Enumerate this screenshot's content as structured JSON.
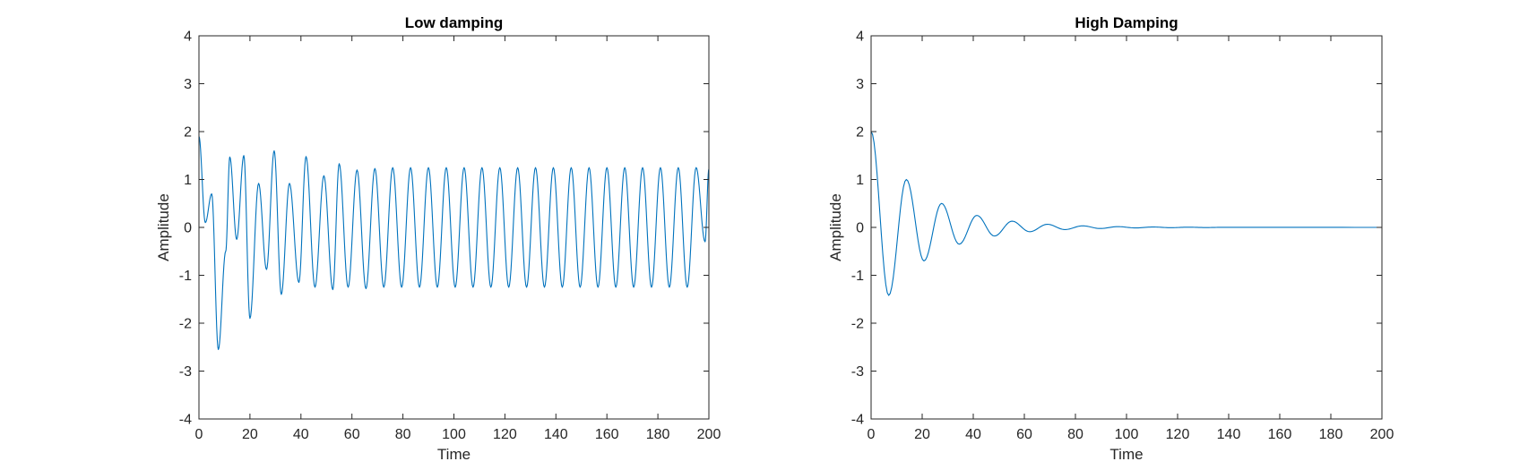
{
  "chart_data": [
    {
      "type": "line",
      "title": "Low damping",
      "xlabel": "Time",
      "ylabel": "Amplitude",
      "xlim": [
        0,
        200
      ],
      "ylim": [
        -4,
        4
      ],
      "xticks": [
        0,
        20,
        40,
        60,
        80,
        100,
        120,
        140,
        160,
        180,
        200
      ],
      "yticks": [
        -4,
        -3,
        -2,
        -1,
        0,
        1,
        2,
        3,
        4
      ],
      "grid": false,
      "color": "#0072BD",
      "series": [
        {
          "x": [
            0,
            2.5,
            5,
            7.6,
            10.5,
            12.1,
            14.8,
            17.6,
            20,
            23.4,
            26.5,
            29.5,
            32.3,
            35.5,
            39.2,
            42,
            45.5,
            49,
            52.5,
            55,
            58.5,
            62,
            65.5,
            69,
            72.5,
            76,
            79.5,
            83,
            86.5,
            90,
            93.5,
            97,
            100.5,
            104,
            107.5,
            111,
            114.5,
            118,
            121.5,
            125,
            128.5,
            132,
            135.5,
            139,
            142.5,
            146,
            149.5,
            153,
            156.5,
            160,
            163.5,
            167,
            170.5,
            174,
            177.5,
            181,
            184.5,
            188,
            191.5,
            195,
            198.5,
            200
          ],
          "y": [
            1.9,
            0.1,
            0.7,
            -2.55,
            -0.5,
            1.47,
            -0.25,
            1.5,
            -1.9,
            0.92,
            -0.88,
            1.6,
            -1.4,
            0.92,
            -1.15,
            1.48,
            -1.25,
            1.08,
            -1.3,
            1.33,
            -1.25,
            1.2,
            -1.28,
            1.23,
            -1.25,
            1.25,
            -1.25,
            1.25,
            -1.25,
            1.25,
            -1.25,
            1.25,
            -1.25,
            1.25,
            -1.25,
            1.25,
            -1.25,
            1.25,
            -1.25,
            1.25,
            -1.25,
            1.25,
            -1.25,
            1.25,
            -1.25,
            1.25,
            -1.25,
            1.25,
            -1.25,
            1.25,
            -1.25,
            1.25,
            -1.25,
            1.25,
            -1.25,
            1.25,
            -1.25,
            1.25,
            -1.25,
            1.25,
            -0.3,
            1.22
          ]
        }
      ]
    },
    {
      "type": "line",
      "title": "High Damping",
      "xlabel": "Time",
      "ylabel": "Amplitude",
      "xlim": [
        0,
        200
      ],
      "ylim": [
        -4,
        4
      ],
      "xticks": [
        0,
        20,
        40,
        60,
        80,
        100,
        120,
        140,
        160,
        180,
        200
      ],
      "yticks": [
        -4,
        -3,
        -2,
        -1,
        0,
        1,
        2,
        3,
        4
      ],
      "grid": false,
      "color": "#0072BD",
      "series": [
        {
          "x": [
            0,
            6.9,
            13.8,
            20.7,
            27.6,
            34.5,
            41.4,
            48.3,
            55.2,
            62.1,
            69,
            75.9,
            82.8,
            89.7,
            96.6,
            103.5,
            110.4,
            117.3,
            124.2,
            131.1,
            138,
            200
          ],
          "y": [
            2.0,
            -1.42,
            1.0,
            -0.7,
            0.5,
            -0.35,
            0.25,
            -0.18,
            0.13,
            -0.09,
            0.065,
            -0.045,
            0.032,
            -0.023,
            0.016,
            -0.011,
            0.008,
            -0.006,
            0.004,
            -0.003,
            0.002,
            0.0
          ]
        }
      ]
    }
  ]
}
